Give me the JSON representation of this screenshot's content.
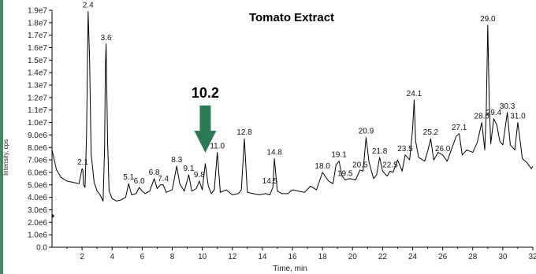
{
  "chart_data": {
    "type": "line",
    "title": "Tomato Extract",
    "xlabel": "Time, min",
    "ylabel": "Intensity, cps",
    "xlim": [
      0,
      32
    ],
    "ylim": [
      0,
      19000000
    ],
    "x_ticks": [
      "2",
      "4",
      "6",
      "8",
      "10",
      "12",
      "14",
      "16",
      "18",
      "20",
      "22",
      "24",
      "26",
      "28",
      "30",
      "32"
    ],
    "x_tick_values": [
      2,
      4,
      6,
      8,
      10,
      12,
      14,
      16,
      18,
      20,
      22,
      24,
      26,
      28,
      30,
      32
    ],
    "y_ticks": [
      "0.0",
      "1.0e6",
      "2.0e6",
      "3.0e6",
      "4.0e6",
      "5.0e6",
      "6.0e6",
      "7.0e6",
      "8.0e6",
      "9.0e6",
      "1.0e7",
      "1.1e7",
      "1.2e7",
      "1.3e7",
      "1.4e7",
      "1.5e7",
      "1.6e7",
      "1.7e7",
      "1.8e7",
      "1.9e7"
    ],
    "y_tick_values": [
      0,
      1000000,
      2000000,
      3000000,
      4000000,
      5000000,
      6000000,
      7000000,
      8000000,
      9000000,
      10000000,
      11000000,
      12000000,
      13000000,
      14000000,
      15000000,
      16000000,
      17000000,
      18000000,
      19000000
    ],
    "series": [
      {
        "color": "#000000",
        "x": [
          0.0,
          0.3,
          0.6,
          1.0,
          1.4,
          1.8,
          2.0,
          2.05,
          2.1,
          2.2,
          2.3,
          2.4,
          2.5,
          2.6,
          2.8,
          3.0,
          3.2,
          3.4,
          3.5,
          3.55,
          3.6,
          3.7,
          3.8,
          4.0,
          4.3,
          4.6,
          4.9,
          5.1,
          5.3,
          5.6,
          5.8,
          6.0,
          6.2,
          6.5,
          6.8,
          7.0,
          7.2,
          7.4,
          7.6,
          8.0,
          8.3,
          8.5,
          8.8,
          9.1,
          9.3,
          9.6,
          9.8,
          10.0,
          10.2,
          10.4,
          10.6,
          10.8,
          11.0,
          11.2,
          11.6,
          12.0,
          12.4,
          12.6,
          12.8,
          13.0,
          13.4,
          13.8,
          14.2,
          14.5,
          14.7,
          14.8,
          15.0,
          15.3,
          15.7,
          16.0,
          16.4,
          16.8,
          17.2,
          17.6,
          18.0,
          18.4,
          18.7,
          18.9,
          19.1,
          19.3,
          19.5,
          19.8,
          20.2,
          20.5,
          20.7,
          20.9,
          21.1,
          21.4,
          21.6,
          21.8,
          22.0,
          22.3,
          22.5,
          22.7,
          23.0,
          23.3,
          23.5,
          23.8,
          24.0,
          24.1,
          24.2,
          24.4,
          24.8,
          25.0,
          25.2,
          25.4,
          25.7,
          26.0,
          26.3,
          26.6,
          26.9,
          27.1,
          27.3,
          27.6,
          28.0,
          28.3,
          28.6,
          28.8,
          28.9,
          29.0,
          29.1,
          29.2,
          29.4,
          29.6,
          29.8,
          30.0,
          30.3,
          30.5,
          30.8,
          31.0,
          31.3,
          31.6,
          31.9,
          32.0
        ],
        "y": [
          7800000,
          6200000,
          5600000,
          5300000,
          5200000,
          5100000,
          6300000,
          6200000,
          5000000,
          4800000,
          9000000,
          18900000,
          15000000,
          7500000,
          5200000,
          4500000,
          4200000,
          3700000,
          8000000,
          14500000,
          16300000,
          8500000,
          4500000,
          3900000,
          3700000,
          3800000,
          4000000,
          5100000,
          4200000,
          4300000,
          4800000,
          4500000,
          4300000,
          4500000,
          5500000,
          4700000,
          5000000,
          5000000,
          4400000,
          4600000,
          6500000,
          5100000,
          4500000,
          5800000,
          4500000,
          4700000,
          5300000,
          4600000,
          6700000,
          4900000,
          4300000,
          4600000,
          7600000,
          4400000,
          4600000,
          4200000,
          4300000,
          4600000,
          8700000,
          4400000,
          4300000,
          4200000,
          4300000,
          4200000,
          4800000,
          7100000,
          4500000,
          4300000,
          4300000,
          4600000,
          4500000,
          4400000,
          4900000,
          4600000,
          6000000,
          5300000,
          5100000,
          6600000,
          6900000,
          5700000,
          5400000,
          5500000,
          5400000,
          6200000,
          6100000,
          8800000,
          6800000,
          5500000,
          5800000,
          7200000,
          6100000,
          5700000,
          6100000,
          6000000,
          7000000,
          6100000,
          7400000,
          7000000,
          9500000,
          11800000,
          8500000,
          7200000,
          6900000,
          7700000,
          8700000,
          7000000,
          7600000,
          7400000,
          6900000,
          7900000,
          8900000,
          9100000,
          7400000,
          7800000,
          7600000,
          8400000,
          10000000,
          7800000,
          11000000,
          17800000,
          11500000,
          8300000,
          10300000,
          9800000,
          8500000,
          8200000,
          10800000,
          8200000,
          7800000,
          10000000,
          7100000,
          6800000,
          6300000,
          6500000
        ]
      }
    ],
    "peak_labels": [
      {
        "text": "2.1",
        "x": 2.05,
        "y": 6300000
      },
      {
        "text": "2.4",
        "x": 2.4,
        "y": 18900000
      },
      {
        "text": "3.6",
        "x": 3.6,
        "y": 16300000
      },
      {
        "text": "5.1",
        "x": 5.1,
        "y": 5100000
      },
      {
        "text": "6.0",
        "x": 5.8,
        "y": 4800000
      },
      {
        "text": "6.8",
        "x": 6.8,
        "y": 5500000
      },
      {
        "text": "7.4",
        "x": 7.4,
        "y": 5000000
      },
      {
        "text": "8.3",
        "x": 8.3,
        "y": 6500000
      },
      {
        "text": "9.1",
        "x": 9.1,
        "y": 5800000
      },
      {
        "text": "9.8",
        "x": 9.8,
        "y": 5300000
      },
      {
        "text": "11.0",
        "x": 11.0,
        "y": 7600000
      },
      {
        "text": "12.8",
        "x": 12.8,
        "y": 8700000
      },
      {
        "text": "14.5",
        "x": 14.5,
        "y": 4800000
      },
      {
        "text": "14.8",
        "x": 14.8,
        "y": 7100000
      },
      {
        "text": "18.0",
        "x": 18.0,
        "y": 6000000
      },
      {
        "text": "19.1",
        "x": 19.1,
        "y": 6900000
      },
      {
        "text": "19.5",
        "x": 19.5,
        "y": 5400000
      },
      {
        "text": "20.5",
        "x": 20.5,
        "y": 6100000
      },
      {
        "text": "20.9",
        "x": 20.9,
        "y": 8800000
      },
      {
        "text": "21.8",
        "x": 21.8,
        "y": 7200000
      },
      {
        "text": "22.5",
        "x": 22.5,
        "y": 6100000
      },
      {
        "text": "23.5",
        "x": 23.5,
        "y": 7400000
      },
      {
        "text": "24.1",
        "x": 24.1,
        "y": 11800000
      },
      {
        "text": "25.2",
        "x": 25.2,
        "y": 8700000
      },
      {
        "text": "26.0",
        "x": 26.0,
        "y": 7400000
      },
      {
        "text": "27.1",
        "x": 27.1,
        "y": 9100000
      },
      {
        "text": "28.6",
        "x": 28.6,
        "y": 10000000
      },
      {
        "text": "29.0",
        "x": 29.0,
        "y": 17800000
      },
      {
        "text": "29.4",
        "x": 29.4,
        "y": 10300000
      },
      {
        "text": "30.3",
        "x": 30.3,
        "y": 10800000
      },
      {
        "text": "31.0",
        "x": 31.0,
        "y": 10000000
      }
    ],
    "callout": {
      "text": "10.2",
      "x": 10.2
    },
    "colors": {
      "accent_left": "#3f8b67",
      "arrow": "#2d7a56",
      "line": "#000000"
    }
  }
}
